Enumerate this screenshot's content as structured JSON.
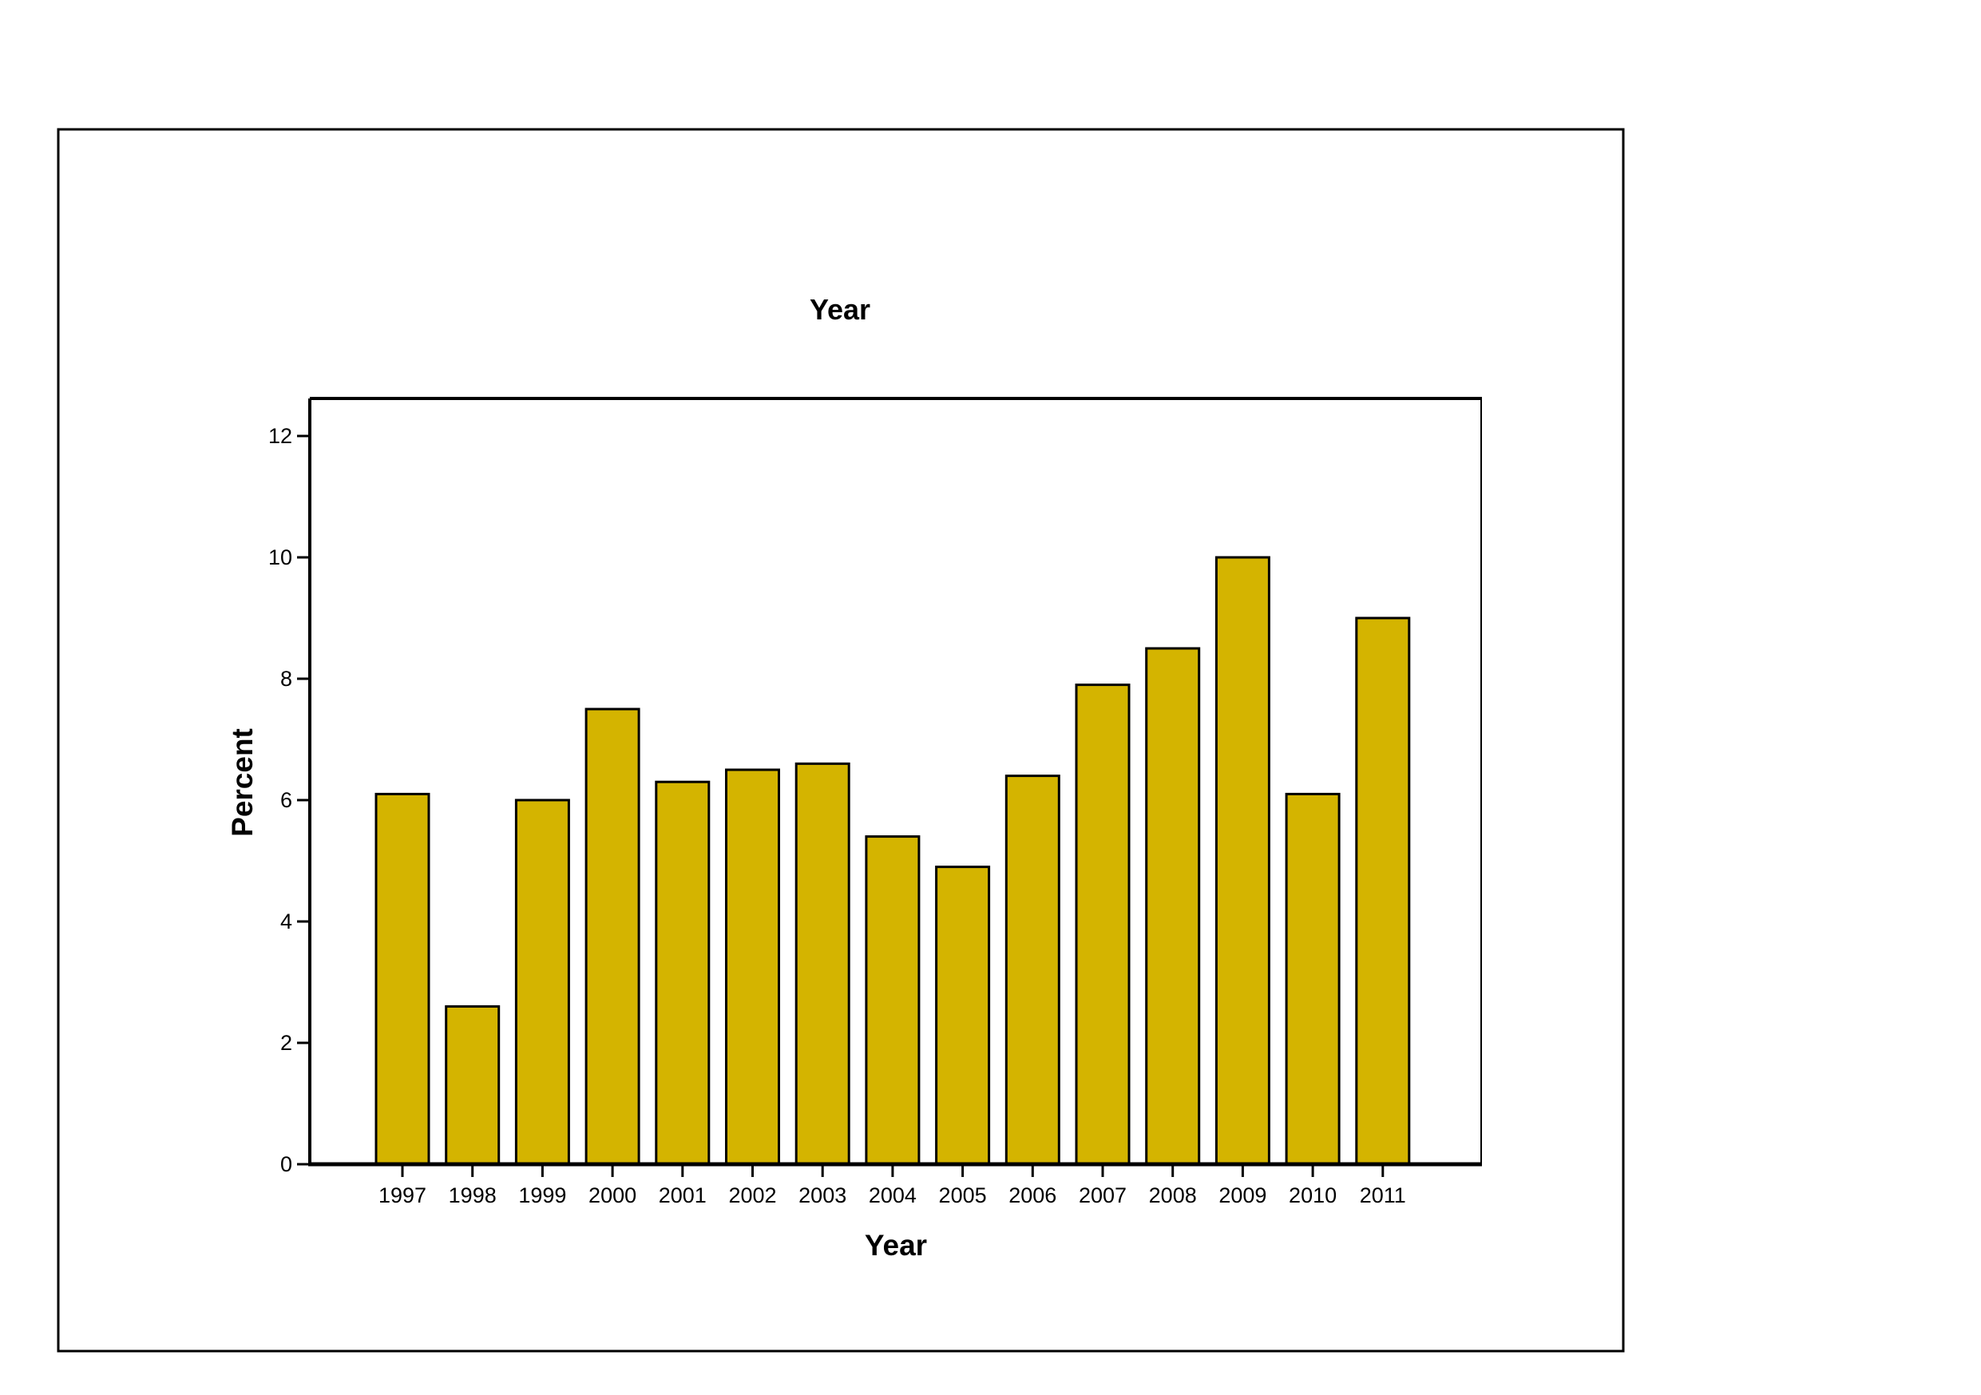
{
  "chart_data": {
    "type": "bar",
    "title": "Year",
    "xlabel": "Year",
    "ylabel": "Percent",
    "categories": [
      "1997",
      "1998",
      "1999",
      "2000",
      "2001",
      "2002",
      "2003",
      "2004",
      "2005",
      "2006",
      "2007",
      "2008",
      "2009",
      "2010",
      "2011"
    ],
    "values": [
      6.1,
      2.6,
      6.0,
      7.5,
      6.3,
      6.5,
      6.6,
      5.4,
      4.9,
      6.4,
      7.9,
      8.5,
      10.0,
      6.1,
      9.0
    ],
    "ylim": [
      0,
      12.6
    ],
    "yticks": [
      "0",
      "2",
      "4",
      "6",
      "8",
      "10",
      "12"
    ],
    "grid": false,
    "colors": {
      "bar_fill": "#d4b400",
      "bar_stroke": "#000000"
    }
  }
}
